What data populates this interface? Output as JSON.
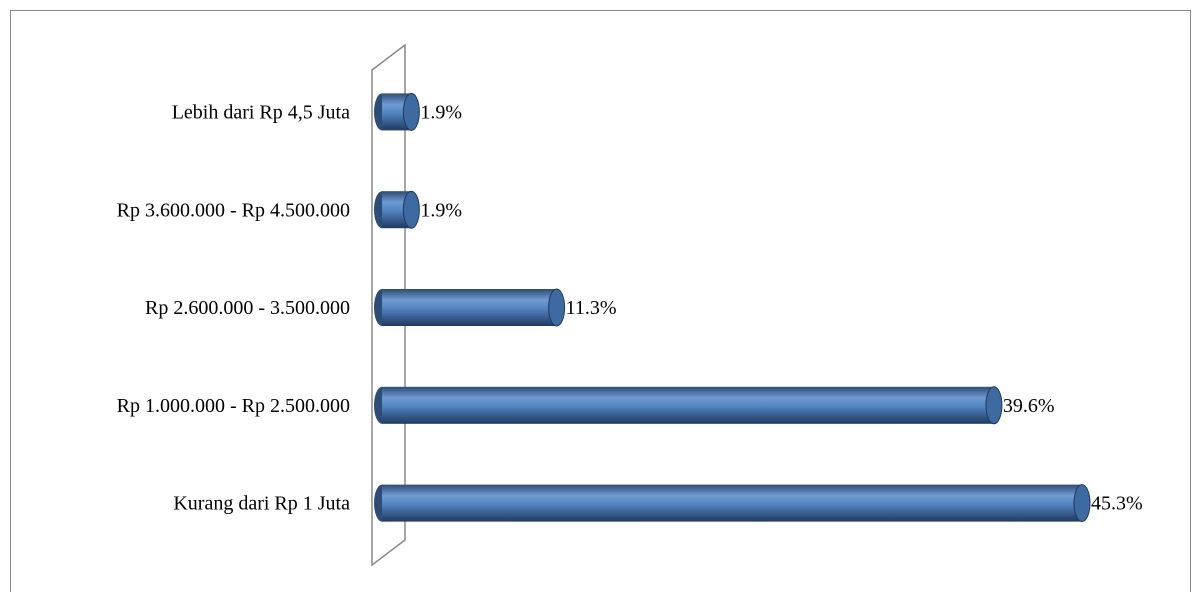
{
  "chart_data": {
    "type": "bar",
    "orientation": "horizontal",
    "categories": [
      "Lebih dari Rp 4,5 Juta",
      "Rp 3.600.000 - Rp 4.500.000",
      "Rp 2.600.000 - 3.500.000",
      "Rp 1.000.000 - Rp 2.500.000",
      "Kurang dari Rp 1 Juta"
    ],
    "values": [
      1.9,
      1.9,
      11.3,
      39.6,
      45.3
    ],
    "value_labels": [
      "1.9%",
      "1.9%",
      "11.3%",
      "39.6%",
      "45.3%"
    ],
    "color": "#4f81bd"
  }
}
